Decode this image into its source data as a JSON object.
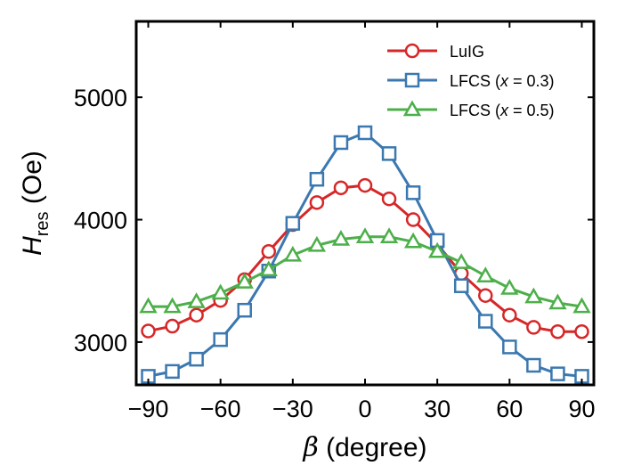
{
  "chart_data": {
    "type": "line",
    "xlabel_symbol": "β",
    "xlabel_text": " (degree)",
    "ylabel_symbol": "H",
    "ylabel_subscript": "res",
    "ylabel_text": " (Oe)",
    "xlim": [
      -95,
      95
    ],
    "ylim": [
      2650,
      5620
    ],
    "xticks": [
      -90,
      -60,
      -30,
      0,
      30,
      60,
      90
    ],
    "xtick_labels": [
      "−90",
      "−60",
      "−30",
      "0",
      "30",
      "60",
      "90"
    ],
    "yticks": [
      3000,
      4000,
      5000
    ],
    "ytick_labels": [
      "3000",
      "4000",
      "5000"
    ],
    "x": [
      -90,
      -80,
      -70,
      -60,
      -50,
      -40,
      -30,
      -20,
      -10,
      0,
      10,
      20,
      30,
      40,
      50,
      60,
      70,
      80,
      90
    ],
    "legend_position": "top-right",
    "grid": false,
    "series": [
      {
        "name": "LuIG",
        "legend_parts": [
          "LuIG"
        ],
        "marker": "circle",
        "color": "#d62728",
        "values": [
          3090,
          3130,
          3220,
          3340,
          3510,
          3740,
          3960,
          4140,
          4260,
          4280,
          4170,
          4000,
          3800,
          3560,
          3380,
          3220,
          3120,
          3085,
          3085
        ]
      },
      {
        "name": "LFCS (x = 0.3)",
        "legend_parts": [
          "LFCS (",
          "x",
          " = 0.3)"
        ],
        "marker": "square",
        "color": "#3b78b0",
        "values": [
          2720,
          2760,
          2860,
          3020,
          3260,
          3580,
          3970,
          4330,
          4630,
          4710,
          4540,
          4220,
          3830,
          3460,
          3170,
          2960,
          2810,
          2740,
          2720
        ]
      },
      {
        "name": "LFCS (x = 0.5)",
        "legend_parts": [
          "LFCS (",
          "x",
          " = 0.5)"
        ],
        "marker": "triangle",
        "color": "#4daf4a",
        "values": [
          3290,
          3290,
          3330,
          3400,
          3490,
          3590,
          3710,
          3790,
          3840,
          3860,
          3860,
          3820,
          3740,
          3650,
          3540,
          3440,
          3370,
          3320,
          3290
        ]
      }
    ]
  }
}
